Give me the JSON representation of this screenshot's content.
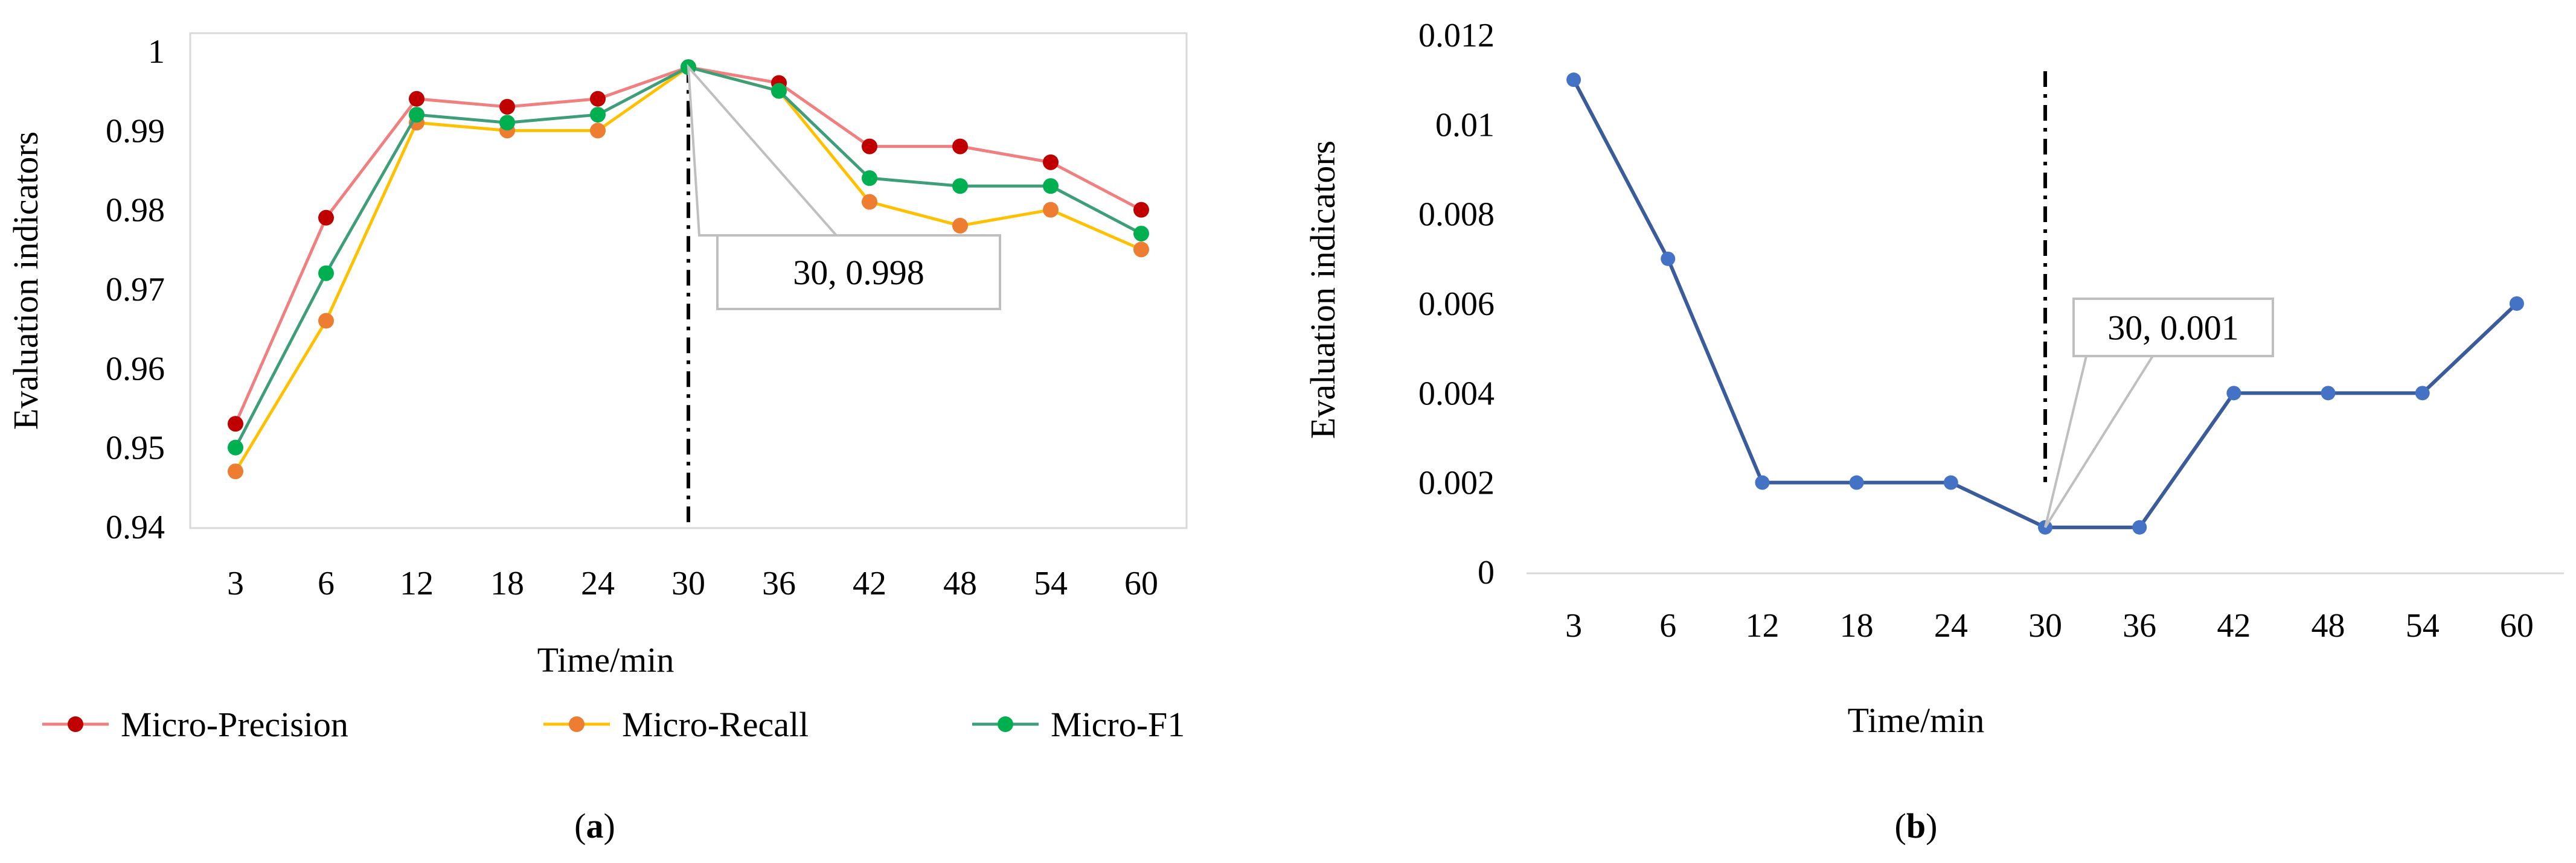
{
  "figure": {
    "panel_a_label_letter": "a",
    "panel_b_label_letter": "b"
  },
  "chart_data": [
    {
      "id": "a",
      "type": "line",
      "title": "",
      "xlabel": "Time/min",
      "ylabel": "Evaluation indicators",
      "categories": [
        "3",
        "6",
        "12",
        "18",
        "24",
        "30",
        "36",
        "42",
        "48",
        "54",
        "60"
      ],
      "ylim": [
        0.94,
        1.0
      ],
      "yticks": [
        0.94,
        0.95,
        0.96,
        0.97,
        0.98,
        0.99,
        1.0
      ],
      "ytick_labels": [
        "0.94",
        "0.95",
        "0.96",
        "0.97",
        "0.98",
        "0.99",
        "1"
      ],
      "grid": false,
      "legend_position": "bottom",
      "series": [
        {
          "name": "Micro-Precision",
          "line_color": "#F08080",
          "marker_color": "#C00000",
          "values": [
            0.953,
            0.979,
            0.994,
            0.993,
            0.994,
            0.998,
            0.996,
            0.988,
            0.988,
            0.986,
            0.98
          ]
        },
        {
          "name": "Micro-Recall",
          "line_color": "#FFC000",
          "marker_color": "#ED7D31",
          "values": [
            0.947,
            0.966,
            0.991,
            0.99,
            0.99,
            0.998,
            0.995,
            0.981,
            0.978,
            0.98,
            0.975
          ]
        },
        {
          "name": "Micro-F1",
          "line_color": "#3E9E7A",
          "marker_color": "#00B050",
          "values": [
            0.95,
            0.972,
            0.992,
            0.991,
            0.992,
            0.998,
            0.995,
            0.984,
            0.983,
            0.983,
            0.977
          ]
        }
      ],
      "vline_category": "30",
      "annotation": {
        "text": "30, 0.998",
        "category": "30",
        "value": 0.998
      }
    },
    {
      "id": "b",
      "type": "line",
      "title": "",
      "xlabel": "Time/min",
      "ylabel": "Evaluation indicators",
      "categories": [
        "3",
        "6",
        "12",
        "18",
        "24",
        "30",
        "36",
        "42",
        "48",
        "54",
        "60"
      ],
      "ylim": [
        0,
        0.012
      ],
      "yticks": [
        0,
        0.002,
        0.004,
        0.006,
        0.008,
        0.01,
        0.012
      ],
      "ytick_labels": [
        "0",
        "0.002",
        "0.004",
        "0.006",
        "0.008",
        "0.01",
        "0.012"
      ],
      "grid": false,
      "legend_position": "none",
      "series": [
        {
          "name": "",
          "line_color": "#3B5C9A",
          "marker_color": "#4472C4",
          "values": [
            0.011,
            0.007,
            0.002,
            0.002,
            0.002,
            0.001,
            0.001,
            0.004,
            0.004,
            0.004,
            0.006
          ]
        }
      ],
      "vline_category": "30",
      "annotation": {
        "text": "30, 0.001",
        "category": "30",
        "value": 0.001
      }
    }
  ]
}
